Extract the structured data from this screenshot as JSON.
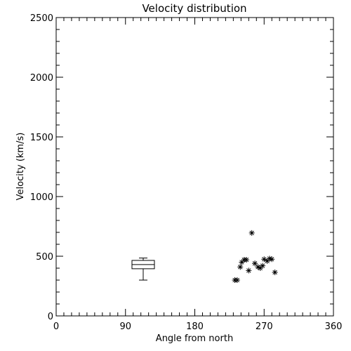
{
  "chart_data": {
    "type": "scatter",
    "title": "Velocity distribution",
    "xlabel": "Angle from north",
    "ylabel": "Velocity (km/s)",
    "xlim": [
      0,
      360
    ],
    "ylim": [
      0,
      2500
    ],
    "xticks": [
      0,
      90,
      180,
      270,
      360
    ],
    "yticks": [
      0,
      500,
      1000,
      1500,
      2000,
      2500
    ],
    "grid": false,
    "boxplot": {
      "x": 113,
      "min": 300,
      "q1": 395,
      "median": 430,
      "q3": 465,
      "max": 485
    },
    "points": [
      {
        "x": 232,
        "y": 300
      },
      {
        "x": 235,
        "y": 300
      },
      {
        "x": 239,
        "y": 410
      },
      {
        "x": 241,
        "y": 450
      },
      {
        "x": 244,
        "y": 470
      },
      {
        "x": 247,
        "y": 470
      },
      {
        "x": 250,
        "y": 380
      },
      {
        "x": 254,
        "y": 695
      },
      {
        "x": 258,
        "y": 440
      },
      {
        "x": 262,
        "y": 410
      },
      {
        "x": 265,
        "y": 400
      },
      {
        "x": 268,
        "y": 420
      },
      {
        "x": 270,
        "y": 475
      },
      {
        "x": 274,
        "y": 460
      },
      {
        "x": 277,
        "y": 480
      },
      {
        "x": 280,
        "y": 475
      },
      {
        "x": 284,
        "y": 365
      }
    ]
  }
}
